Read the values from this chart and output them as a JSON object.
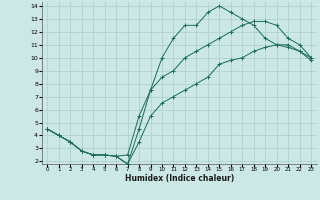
{
  "xlabel": "Humidex (Indice chaleur)",
  "bg_color": "#cce8e6",
  "grid_color": "#aacfcc",
  "line_color": "#1a6b5a",
  "xlim": [
    -0.5,
    23.5
  ],
  "ylim": [
    1.8,
    14.3
  ],
  "xticks": [
    0,
    1,
    2,
    3,
    4,
    5,
    6,
    7,
    8,
    9,
    10,
    11,
    12,
    13,
    14,
    15,
    16,
    17,
    18,
    19,
    20,
    21,
    22,
    23
  ],
  "yticks": [
    2,
    3,
    4,
    5,
    6,
    7,
    8,
    9,
    10,
    11,
    12,
    13,
    14
  ],
  "line1_x": [
    0,
    1,
    2,
    3,
    4,
    5,
    6,
    7,
    8,
    9,
    10,
    11,
    12,
    13,
    14,
    15,
    16,
    17,
    18,
    19,
    20,
    21,
    22,
    23
  ],
  "line1_y": [
    4.5,
    4.0,
    3.5,
    2.8,
    2.5,
    2.5,
    2.4,
    1.8,
    4.5,
    7.5,
    10.0,
    11.5,
    12.5,
    12.5,
    13.5,
    14.0,
    13.5,
    13.0,
    12.5,
    11.5,
    11.0,
    10.8,
    10.5,
    9.8
  ],
  "line2_x": [
    0,
    1,
    2,
    3,
    4,
    5,
    6,
    7,
    8,
    9,
    10,
    11,
    12,
    13,
    14,
    15,
    16,
    17,
    18,
    19,
    20,
    21,
    22,
    23
  ],
  "line2_y": [
    4.5,
    4.0,
    3.5,
    2.8,
    2.5,
    2.5,
    2.4,
    2.5,
    5.5,
    7.5,
    8.5,
    9.0,
    10.0,
    10.5,
    11.0,
    11.5,
    12.0,
    12.5,
    12.8,
    12.8,
    12.5,
    11.5,
    11.0,
    10.0
  ],
  "line3_x": [
    0,
    1,
    2,
    3,
    4,
    5,
    6,
    7,
    8,
    9,
    10,
    11,
    12,
    13,
    14,
    15,
    16,
    17,
    18,
    19,
    20,
    21,
    22,
    23
  ],
  "line3_y": [
    4.5,
    4.0,
    3.5,
    2.8,
    2.5,
    2.5,
    2.4,
    1.8,
    3.5,
    5.5,
    6.5,
    7.0,
    7.5,
    8.0,
    8.5,
    9.5,
    9.8,
    10.0,
    10.5,
    10.8,
    11.0,
    11.0,
    10.5,
    10.0
  ]
}
